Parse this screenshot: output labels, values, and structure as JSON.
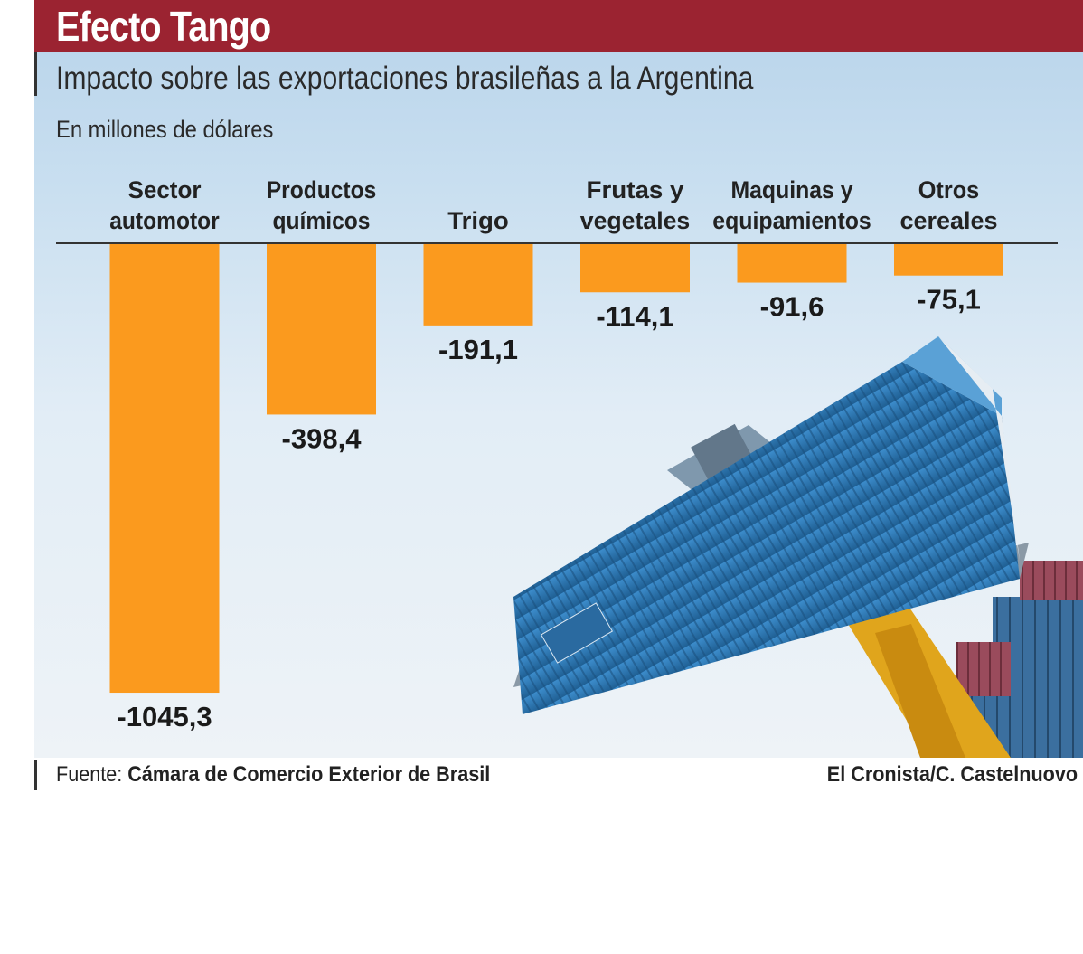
{
  "header": {
    "title": "Efecto Tango",
    "subtitle": "Impacto sobre las exportaciones brasileñas a la Argentina",
    "units": "En millones de dólares"
  },
  "footer": {
    "source_prefix": "Fuente:",
    "source_name": "Cámara de Comercio Exterior de Brasil",
    "credit": "El Cronista/C. Castelnuovo"
  },
  "colors": {
    "title_bar": "#9b2331",
    "bar": "#fb9a1e",
    "container": "#2f78b3"
  },
  "chart_data": {
    "type": "bar",
    "title": "Impacto sobre las exportaciones brasileñas a la Argentina",
    "ylabel": "En millones de dólares",
    "categories": [
      [
        "Sector",
        "automotor"
      ],
      [
        "Productos",
        "químicos"
      ],
      [
        "",
        "Trigo"
      ],
      [
        "Frutas y",
        "vegetales"
      ],
      [
        "Maquinas y",
        "equipamientos"
      ],
      [
        "Otros",
        "cereales"
      ]
    ],
    "values": [
      -1045.3,
      -398.4,
      -191.1,
      -114.1,
      -91.6,
      -75.1
    ],
    "value_labels": [
      "-1045,3",
      "-398,4",
      "-191,1",
      "-114,1",
      "-91,6",
      "-75,1"
    ],
    "grid": false,
    "legend": "none"
  }
}
